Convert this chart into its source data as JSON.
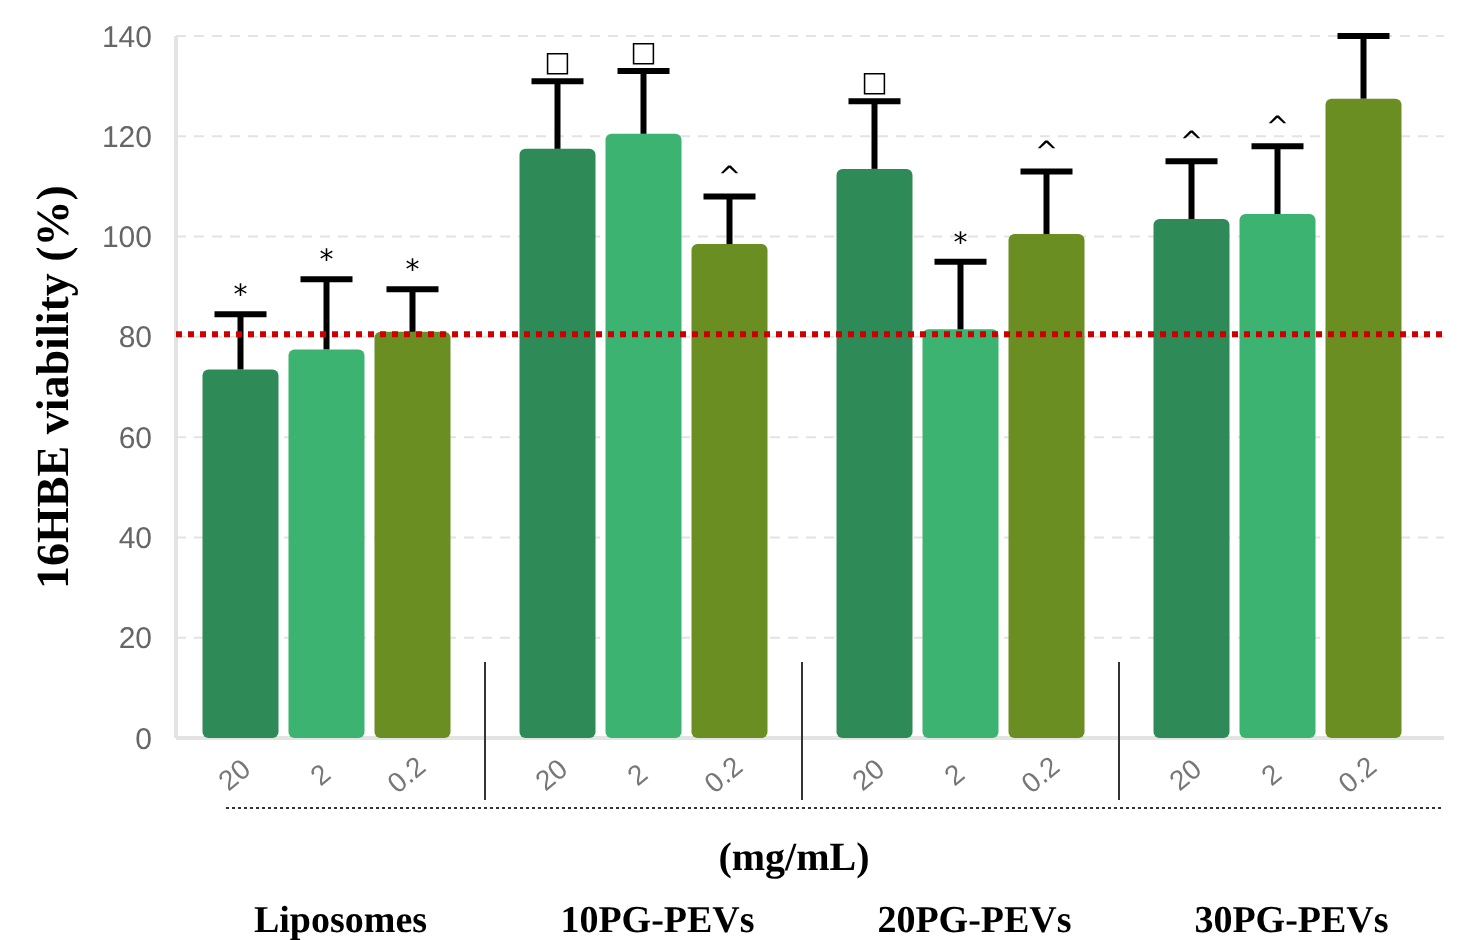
{
  "chart_data": {
    "type": "bar",
    "ylabel": "16HBE viability (%)",
    "xlabel": "(mg/mL)",
    "categories": [
      "20",
      "2",
      "0.2",
      "20",
      "2",
      "0.2",
      "20",
      "2",
      "0.2",
      "20",
      "2",
      "0.2"
    ],
    "values": [
      73.5,
      77.5,
      81,
      117.5,
      120.5,
      98.5,
      113.5,
      81.5,
      100.5,
      103.5,
      104.5,
      127.5
    ],
    "colors": [
      "#2e8b57",
      "#3cb371",
      "#6b8e23",
      "#2e8b57",
      "#3cb371",
      "#6b8e23",
      "#2e8b57",
      "#3cb371",
      "#6b8e23",
      "#2e8b57",
      "#3cb371",
      "#6b8e23"
    ],
    "errors": [
      [
        73.5,
        84.5
      ],
      [
        77.5,
        91.5
      ],
      [
        81,
        89.5
      ],
      [
        117.5,
        131
      ],
      [
        120.5,
        133
      ],
      [
        98.5,
        108
      ],
      [
        113.5,
        127
      ],
      [
        81.5,
        95
      ],
      [
        100.5,
        113
      ],
      [
        103.5,
        115
      ],
      [
        104.5,
        118
      ],
      [
        127.5,
        140
      ]
    ],
    "ylim": [
      0,
      140
    ],
    "yticks": [
      0,
      20,
      40,
      60,
      80,
      100,
      120,
      140
    ],
    "grid": "y",
    "ref_lines": [
      {
        "axis": "y",
        "value": 80.5,
        "color": "#cc0000",
        "line_style": "dotted"
      }
    ],
    "value_labels": [
      "*",
      "*",
      "*",
      "□",
      "□",
      "^",
      "□",
      "*",
      "^",
      "^",
      "^",
      null
    ],
    "annotations": [
      "Liposomes",
      "10PG-PEVs",
      "20PG-PEVs",
      "30PG-PEVs"
    ]
  }
}
